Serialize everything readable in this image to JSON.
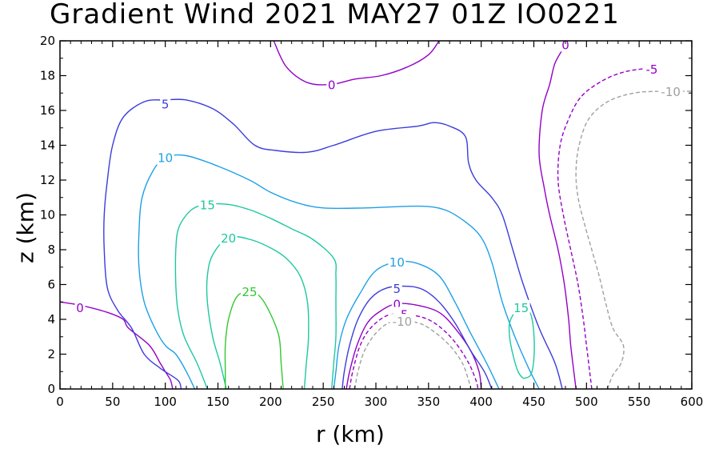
{
  "chart_data": {
    "type": "contour",
    "title": "Gradient Wind 2021 MAY27 01Z  IO0221",
    "xlabel": "r (km)",
    "ylabel": "z (km)",
    "xlim": [
      0,
      600
    ],
    "ylim": [
      0,
      20
    ],
    "xticks": [
      "0",
      "50",
      "100",
      "150",
      "200",
      "250",
      "300",
      "350",
      "400",
      "450",
      "500",
      "550",
      "600"
    ],
    "yticks": [
      "0",
      "2",
      "4",
      "6",
      "8",
      "10",
      "12",
      "14",
      "16",
      "18",
      "20"
    ],
    "grid": false,
    "colors": {
      "-10": "#a0a0a0",
      "-5": "#9400c8",
      "0": "#9400c8",
      "5": "#3c3cdc",
      "10": "#1ea0e6",
      "15": "#1ec8a0",
      "20": "#1ec8a0",
      "25": "#32c832"
    },
    "contours": [
      {
        "level": 0,
        "label": "0",
        "dashed": false,
        "label_at": [
          19,
          4.7
        ],
        "points": [
          [
            0,
            5
          ],
          [
            20,
            4.8
          ],
          [
            45,
            4.4
          ],
          [
            60,
            4
          ],
          [
            65,
            3.5
          ],
          [
            85,
            2.5
          ],
          [
            95,
            1.5
          ],
          [
            100,
            1
          ],
          [
            105,
            0.5
          ],
          [
            107,
            0
          ]
        ]
      },
      {
        "level": 0,
        "label": "0",
        "dashed": false,
        "label_at": [
          258,
          17.5
        ],
        "points": [
          [
            203,
            20
          ],
          [
            215,
            18.5
          ],
          [
            235,
            17.6
          ],
          [
            258,
            17.5
          ],
          [
            280,
            17.8
          ],
          [
            305,
            18
          ],
          [
            330,
            18.5
          ],
          [
            350,
            19.2
          ],
          [
            360,
            20
          ]
        ]
      },
      {
        "level": 0,
        "label": "0",
        "dashed": false,
        "label_at": [
          480,
          19.8
        ],
        "points": [
          [
            490,
            0
          ],
          [
            488,
            1
          ],
          [
            485,
            2.5
          ],
          [
            483,
            4
          ],
          [
            479,
            6
          ],
          [
            473,
            8
          ],
          [
            465,
            10
          ],
          [
            460,
            11.5
          ],
          [
            455,
            13.5
          ],
          [
            458,
            16
          ],
          [
            465,
            17.5
          ],
          [
            470,
            18.7
          ],
          [
            478,
            19.6
          ],
          [
            480,
            20
          ]
        ]
      },
      {
        "level": 0,
        "label": "0",
        "dashed": false,
        "label_at": [
          320,
          4.9
        ],
        "points": [
          [
            272,
            0
          ],
          [
            275,
            1
          ],
          [
            282,
            2.5
          ],
          [
            292,
            3.8
          ],
          [
            305,
            4.5
          ],
          [
            320,
            4.9
          ],
          [
            340,
            4.8
          ],
          [
            360,
            4.4
          ],
          [
            375,
            3.5
          ],
          [
            390,
            2.2
          ],
          [
            398,
            1
          ],
          [
            400,
            0
          ]
        ]
      },
      {
        "level": 5,
        "label": "5",
        "dashed": false,
        "label_at": [
          100,
          16.4
        ],
        "points": [
          [
            115,
            0
          ],
          [
            112,
            0.5
          ],
          [
            95,
            1.2
          ],
          [
            80,
            2
          ],
          [
            68,
            3.5
          ],
          [
            55,
            4.5
          ],
          [
            45,
            5.8
          ],
          [
            42,
            8
          ],
          [
            42,
            10
          ],
          [
            45,
            12
          ],
          [
            50,
            14
          ],
          [
            60,
            15.6
          ],
          [
            80,
            16.5
          ],
          [
            100,
            16.6
          ],
          [
            120,
            16.6
          ],
          [
            145,
            16.1
          ],
          [
            165,
            15.2
          ],
          [
            185,
            14
          ],
          [
            205,
            13.7
          ],
          [
            235,
            13.6
          ],
          [
            260,
            14
          ],
          [
            300,
            14.8
          ],
          [
            340,
            15.1
          ],
          [
            355,
            15.3
          ],
          [
            370,
            15.1
          ],
          [
            385,
            14.5
          ],
          [
            388,
            13
          ],
          [
            395,
            12
          ],
          [
            410,
            11
          ],
          [
            420,
            10
          ],
          [
            430,
            8
          ],
          [
            440,
            6
          ],
          [
            455,
            3.5
          ],
          [
            470,
            1.5
          ],
          [
            477,
            0
          ]
        ]
      },
      {
        "level": 5,
        "label": "5",
        "dashed": false,
        "label_at": [
          320,
          5.8
        ],
        "points": [
          [
            268,
            0
          ],
          [
            270,
            1
          ],
          [
            275,
            2.5
          ],
          [
            283,
            4
          ],
          [
            295,
            5.2
          ],
          [
            310,
            5.8
          ],
          [
            330,
            5.9
          ],
          [
            345,
            5.7
          ],
          [
            360,
            5
          ],
          [
            375,
            3.8
          ],
          [
            390,
            2.2
          ],
          [
            403,
            1
          ],
          [
            410,
            0
          ]
        ]
      },
      {
        "level": 10,
        "label": "10",
        "dashed": false,
        "label_at": [
          100,
          13.3
        ],
        "points": [
          [
            128,
            0
          ],
          [
            120,
            1
          ],
          [
            110,
            2
          ],
          [
            100,
            2.5
          ],
          [
            90,
            3.5
          ],
          [
            80,
            5
          ],
          [
            75,
            7
          ],
          [
            75,
            9
          ],
          [
            78,
            11
          ],
          [
            88,
            12.5
          ],
          [
            100,
            13.3
          ],
          [
            120,
            13.4
          ],
          [
            150,
            12.8
          ],
          [
            180,
            12
          ],
          [
            200,
            11.3
          ],
          [
            225,
            10.7
          ],
          [
            250,
            10.4
          ],
          [
            290,
            10.4
          ],
          [
            340,
            10.5
          ],
          [
            365,
            10.3
          ],
          [
            385,
            9.6
          ],
          [
            400,
            8.7
          ],
          [
            410,
            7.3
          ],
          [
            420,
            5
          ],
          [
            432,
            3
          ],
          [
            445,
            1.2
          ],
          [
            455,
            0
          ]
        ]
      },
      {
        "level": 10,
        "label": "10",
        "dashed": false,
        "label_at": [
          320,
          7.3
        ],
        "points": [
          [
            260,
            0
          ],
          [
            262,
            1
          ],
          [
            265,
            2.5
          ],
          [
            272,
            4
          ],
          [
            285,
            5.5
          ],
          [
            300,
            6.8
          ],
          [
            320,
            7.3
          ],
          [
            340,
            7.2
          ],
          [
            360,
            6.5
          ],
          [
            375,
            5
          ],
          [
            390,
            3.2
          ],
          [
            405,
            1.5
          ],
          [
            417,
            0
          ]
        ]
      },
      {
        "level": 15,
        "label": "15",
        "dashed": false,
        "label_at": [
          140,
          10.6
        ],
        "points": [
          [
            140,
            0
          ],
          [
            130,
            1.5
          ],
          [
            118,
            3
          ],
          [
            112,
            4.5
          ],
          [
            110,
            6
          ],
          [
            110,
            8
          ],
          [
            113,
            9.3
          ],
          [
            125,
            10.3
          ],
          [
            140,
            10.6
          ],
          [
            160,
            10.6
          ],
          [
            180,
            10.3
          ],
          [
            200,
            9.8
          ],
          [
            220,
            9.2
          ],
          [
            240,
            8.6
          ],
          [
            260,
            7.5
          ],
          [
            262,
            6.5
          ],
          [
            262,
            5
          ],
          [
            262,
            3
          ],
          [
            260,
            1.5
          ],
          [
            258,
            0
          ]
        ]
      },
      {
        "level": 15,
        "label": "15",
        "dashed": false,
        "label_at": [
          438,
          4.7
        ],
        "points": [
          [
            440,
            0.6
          ],
          [
            435,
            1
          ],
          [
            430,
            2
          ],
          [
            427,
            3
          ],
          [
            427,
            3.8
          ],
          [
            433,
            4.5
          ],
          [
            440,
            4.7
          ],
          [
            447,
            4.3
          ],
          [
            450,
            3.2
          ],
          [
            450,
            1.7
          ],
          [
            447,
            0.8
          ],
          [
            440,
            0.6
          ]
        ]
      },
      {
        "level": 20,
        "label": "20",
        "dashed": false,
        "label_at": [
          160,
          8.7
        ],
        "points": [
          [
            158,
            0
          ],
          [
            152,
            1.5
          ],
          [
            145,
            3
          ],
          [
            140,
            5
          ],
          [
            140,
            6.5
          ],
          [
            145,
            7.7
          ],
          [
            160,
            8.7
          ],
          [
            180,
            8.6
          ],
          [
            200,
            8.1
          ],
          [
            215,
            7.5
          ],
          [
            228,
            6.5
          ],
          [
            235,
            5
          ],
          [
            236,
            3
          ],
          [
            234,
            1.5
          ],
          [
            232,
            0
          ]
        ]
      },
      {
        "level": 25,
        "label": "25",
        "dashed": false,
        "label_at": [
          180,
          5.6
        ],
        "points": [
          [
            157,
            0
          ],
          [
            157,
            1
          ],
          [
            157,
            2.5
          ],
          [
            160,
            4
          ],
          [
            168,
            5.3
          ],
          [
            180,
            5.6
          ],
          [
            190,
            5.3
          ],
          [
            200,
            4.3
          ],
          [
            208,
            3
          ],
          [
            210,
            1.5
          ],
          [
            212,
            0
          ]
        ]
      },
      {
        "level": -5,
        "label": "-5",
        "dashed": true,
        "label_at": [
          325,
          4.3
        ],
        "points": [
          [
            275,
            0
          ],
          [
            278,
            1
          ],
          [
            285,
            2.5
          ],
          [
            295,
            3.5
          ],
          [
            310,
            4.2
          ],
          [
            325,
            4.3
          ],
          [
            345,
            4.1
          ],
          [
            360,
            3.6
          ],
          [
            375,
            2.7
          ],
          [
            388,
            1.5
          ],
          [
            395,
            0.5
          ],
          [
            397,
            0
          ]
        ]
      },
      {
        "level": -5,
        "label": "-5",
        "dashed": true,
        "label_at": [
          562,
          18.4
        ],
        "points": [
          [
            505,
            0
          ],
          [
            503,
            1
          ],
          [
            500,
            2.5
          ],
          [
            497,
            4
          ],
          [
            492,
            6
          ],
          [
            485,
            8
          ],
          [
            478,
            10
          ],
          [
            473,
            12
          ],
          [
            475,
            14
          ],
          [
            483,
            15.5
          ],
          [
            495,
            16.8
          ],
          [
            515,
            17.7
          ],
          [
            535,
            18.2
          ],
          [
            555,
            18.4
          ],
          [
            562,
            18.4
          ]
        ]
      },
      {
        "level": -10,
        "label": "-10",
        "dashed": true,
        "label_at": [
          325,
          3.9
        ],
        "points": [
          [
            280,
            0
          ],
          [
            283,
            1
          ],
          [
            290,
            2.3
          ],
          [
            303,
            3.4
          ],
          [
            318,
            3.9
          ],
          [
            340,
            3.8
          ],
          [
            355,
            3.3
          ],
          [
            370,
            2.5
          ],
          [
            382,
            1.5
          ],
          [
            388,
            0.5
          ],
          [
            390,
            0
          ]
        ]
      },
      {
        "level": -10,
        "label": "-10",
        "dashed": true,
        "label_at": [
          580,
          17.1
        ],
        "points": [
          [
            520,
            0
          ],
          [
            525,
            0.8
          ],
          [
            533,
            1.5
          ],
          [
            535,
            2.5
          ],
          [
            525,
            3.5
          ],
          [
            518,
            5
          ],
          [
            512,
            6.5
          ],
          [
            505,
            8
          ],
          [
            498,
            9.5
          ],
          [
            492,
            11
          ],
          [
            490,
            12.5
          ],
          [
            493,
            14
          ],
          [
            502,
            15.5
          ],
          [
            520,
            16.5
          ],
          [
            545,
            17
          ],
          [
            570,
            17.1
          ],
          [
            600,
            17.1
          ]
        ]
      }
    ]
  }
}
